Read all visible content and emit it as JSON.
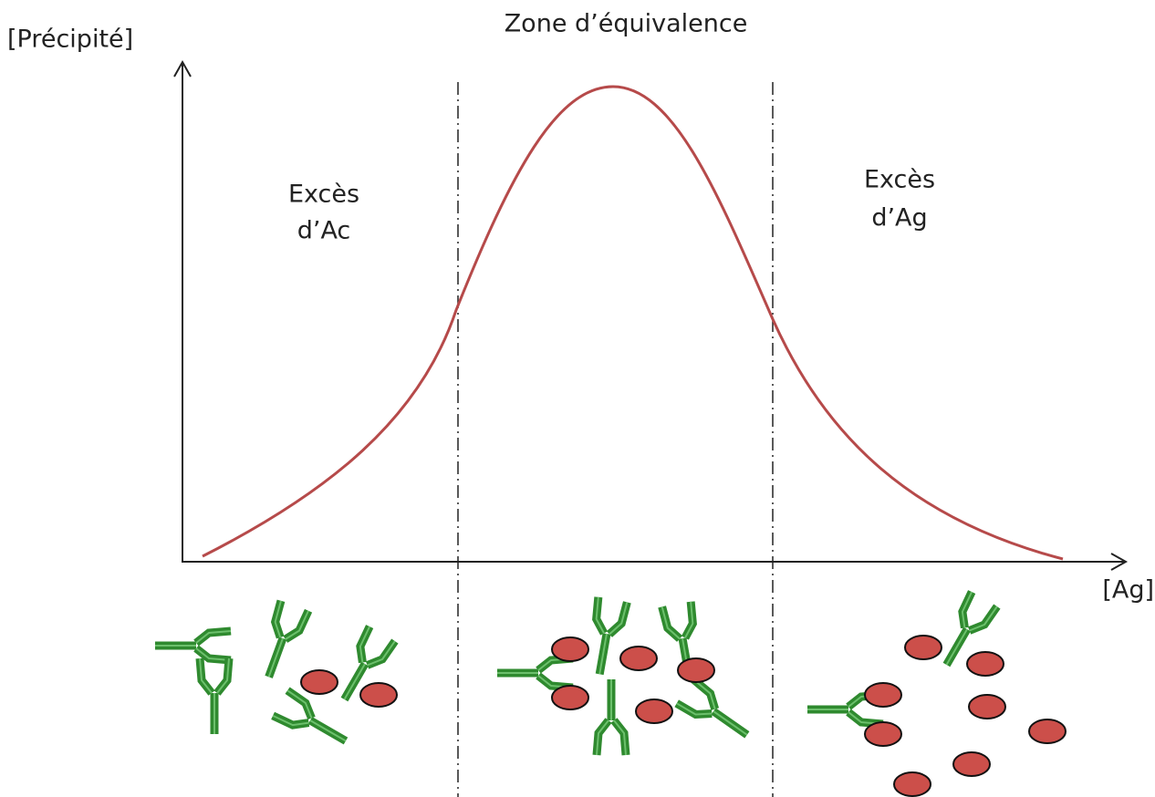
{
  "title": "Zone d’équivalence",
  "y_axis_label": "[Précipité]",
  "x_axis_label": "[Ag]",
  "zones": [
    {
      "lines": [
        "Excès",
        "d’Ac"
      ]
    },
    {
      "lines": [
        "Excès",
        "d’Ag"
      ]
    }
  ]
}
